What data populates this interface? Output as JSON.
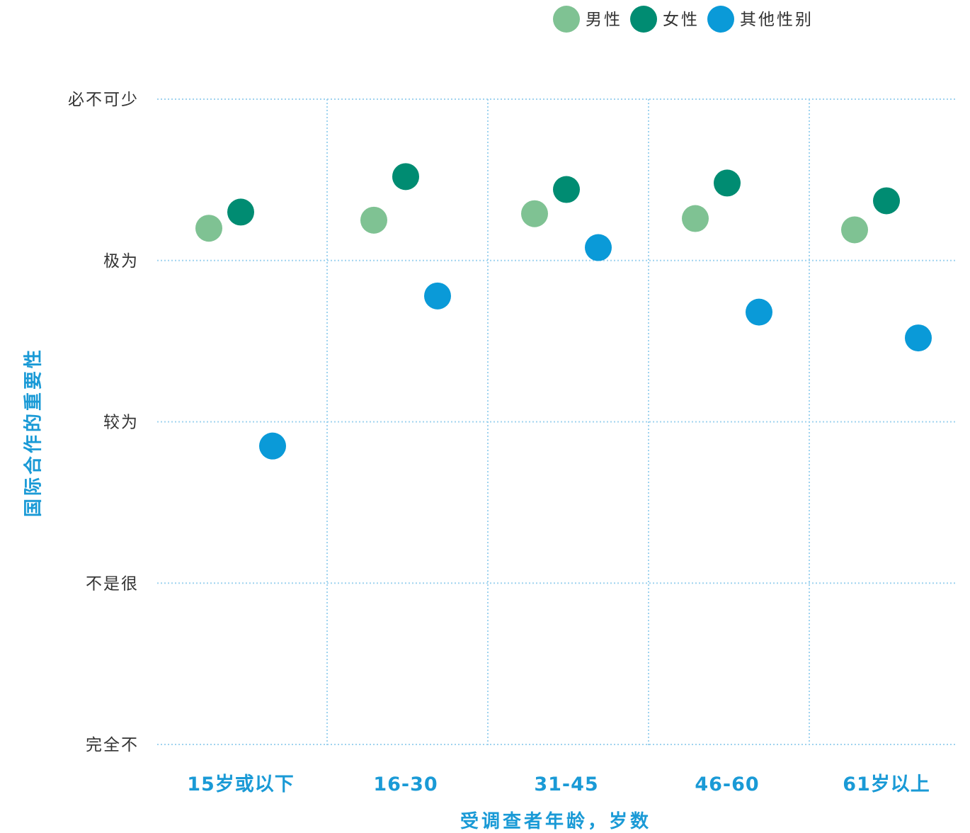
{
  "chart_data": {
    "type": "scatter",
    "xlabel": "受调查者年龄，岁数",
    "ylabel": "国际合作的重要性",
    "categories": [
      "15岁或以下",
      "16-30",
      "31-45",
      "46-60",
      "61岁以上"
    ],
    "y_levels": [
      "完全不",
      "不是很",
      "较为",
      "极为",
      "必不可少"
    ],
    "ylim": [
      1,
      5
    ],
    "grid": true,
    "legend_position": "top-right",
    "series": [
      {
        "name": "男性",
        "color": "#7fc293",
        "values": [
          4.2,
          4.25,
          4.29,
          4.26,
          4.19
        ]
      },
      {
        "name": "女性",
        "color": "#008c72",
        "values": [
          4.3,
          4.52,
          4.44,
          4.48,
          4.37
        ]
      },
      {
        "name": "其他性别",
        "color": "#0a9ad8",
        "values": [
          2.85,
          3.78,
          4.08,
          3.68,
          3.52
        ]
      }
    ]
  }
}
